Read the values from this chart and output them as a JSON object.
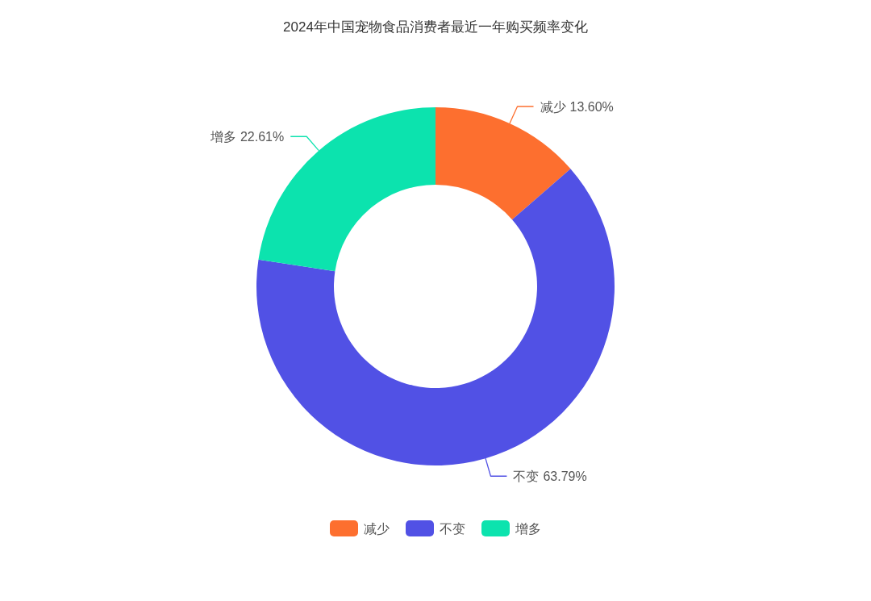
{
  "chart_data": {
    "type": "donut",
    "title": "2024年中国宠物食品消费者最近一年购买频率变化",
    "categories": [
      "减少",
      "不变",
      "增多"
    ],
    "values": [
      13.6,
      63.79,
      22.61
    ],
    "value_labels": [
      "13.60%",
      "63.79%",
      "22.61%"
    ],
    "colors": [
      "#fd6f2f",
      "#5151e5",
      "#0ce3ae"
    ],
    "legend": "bottom"
  }
}
